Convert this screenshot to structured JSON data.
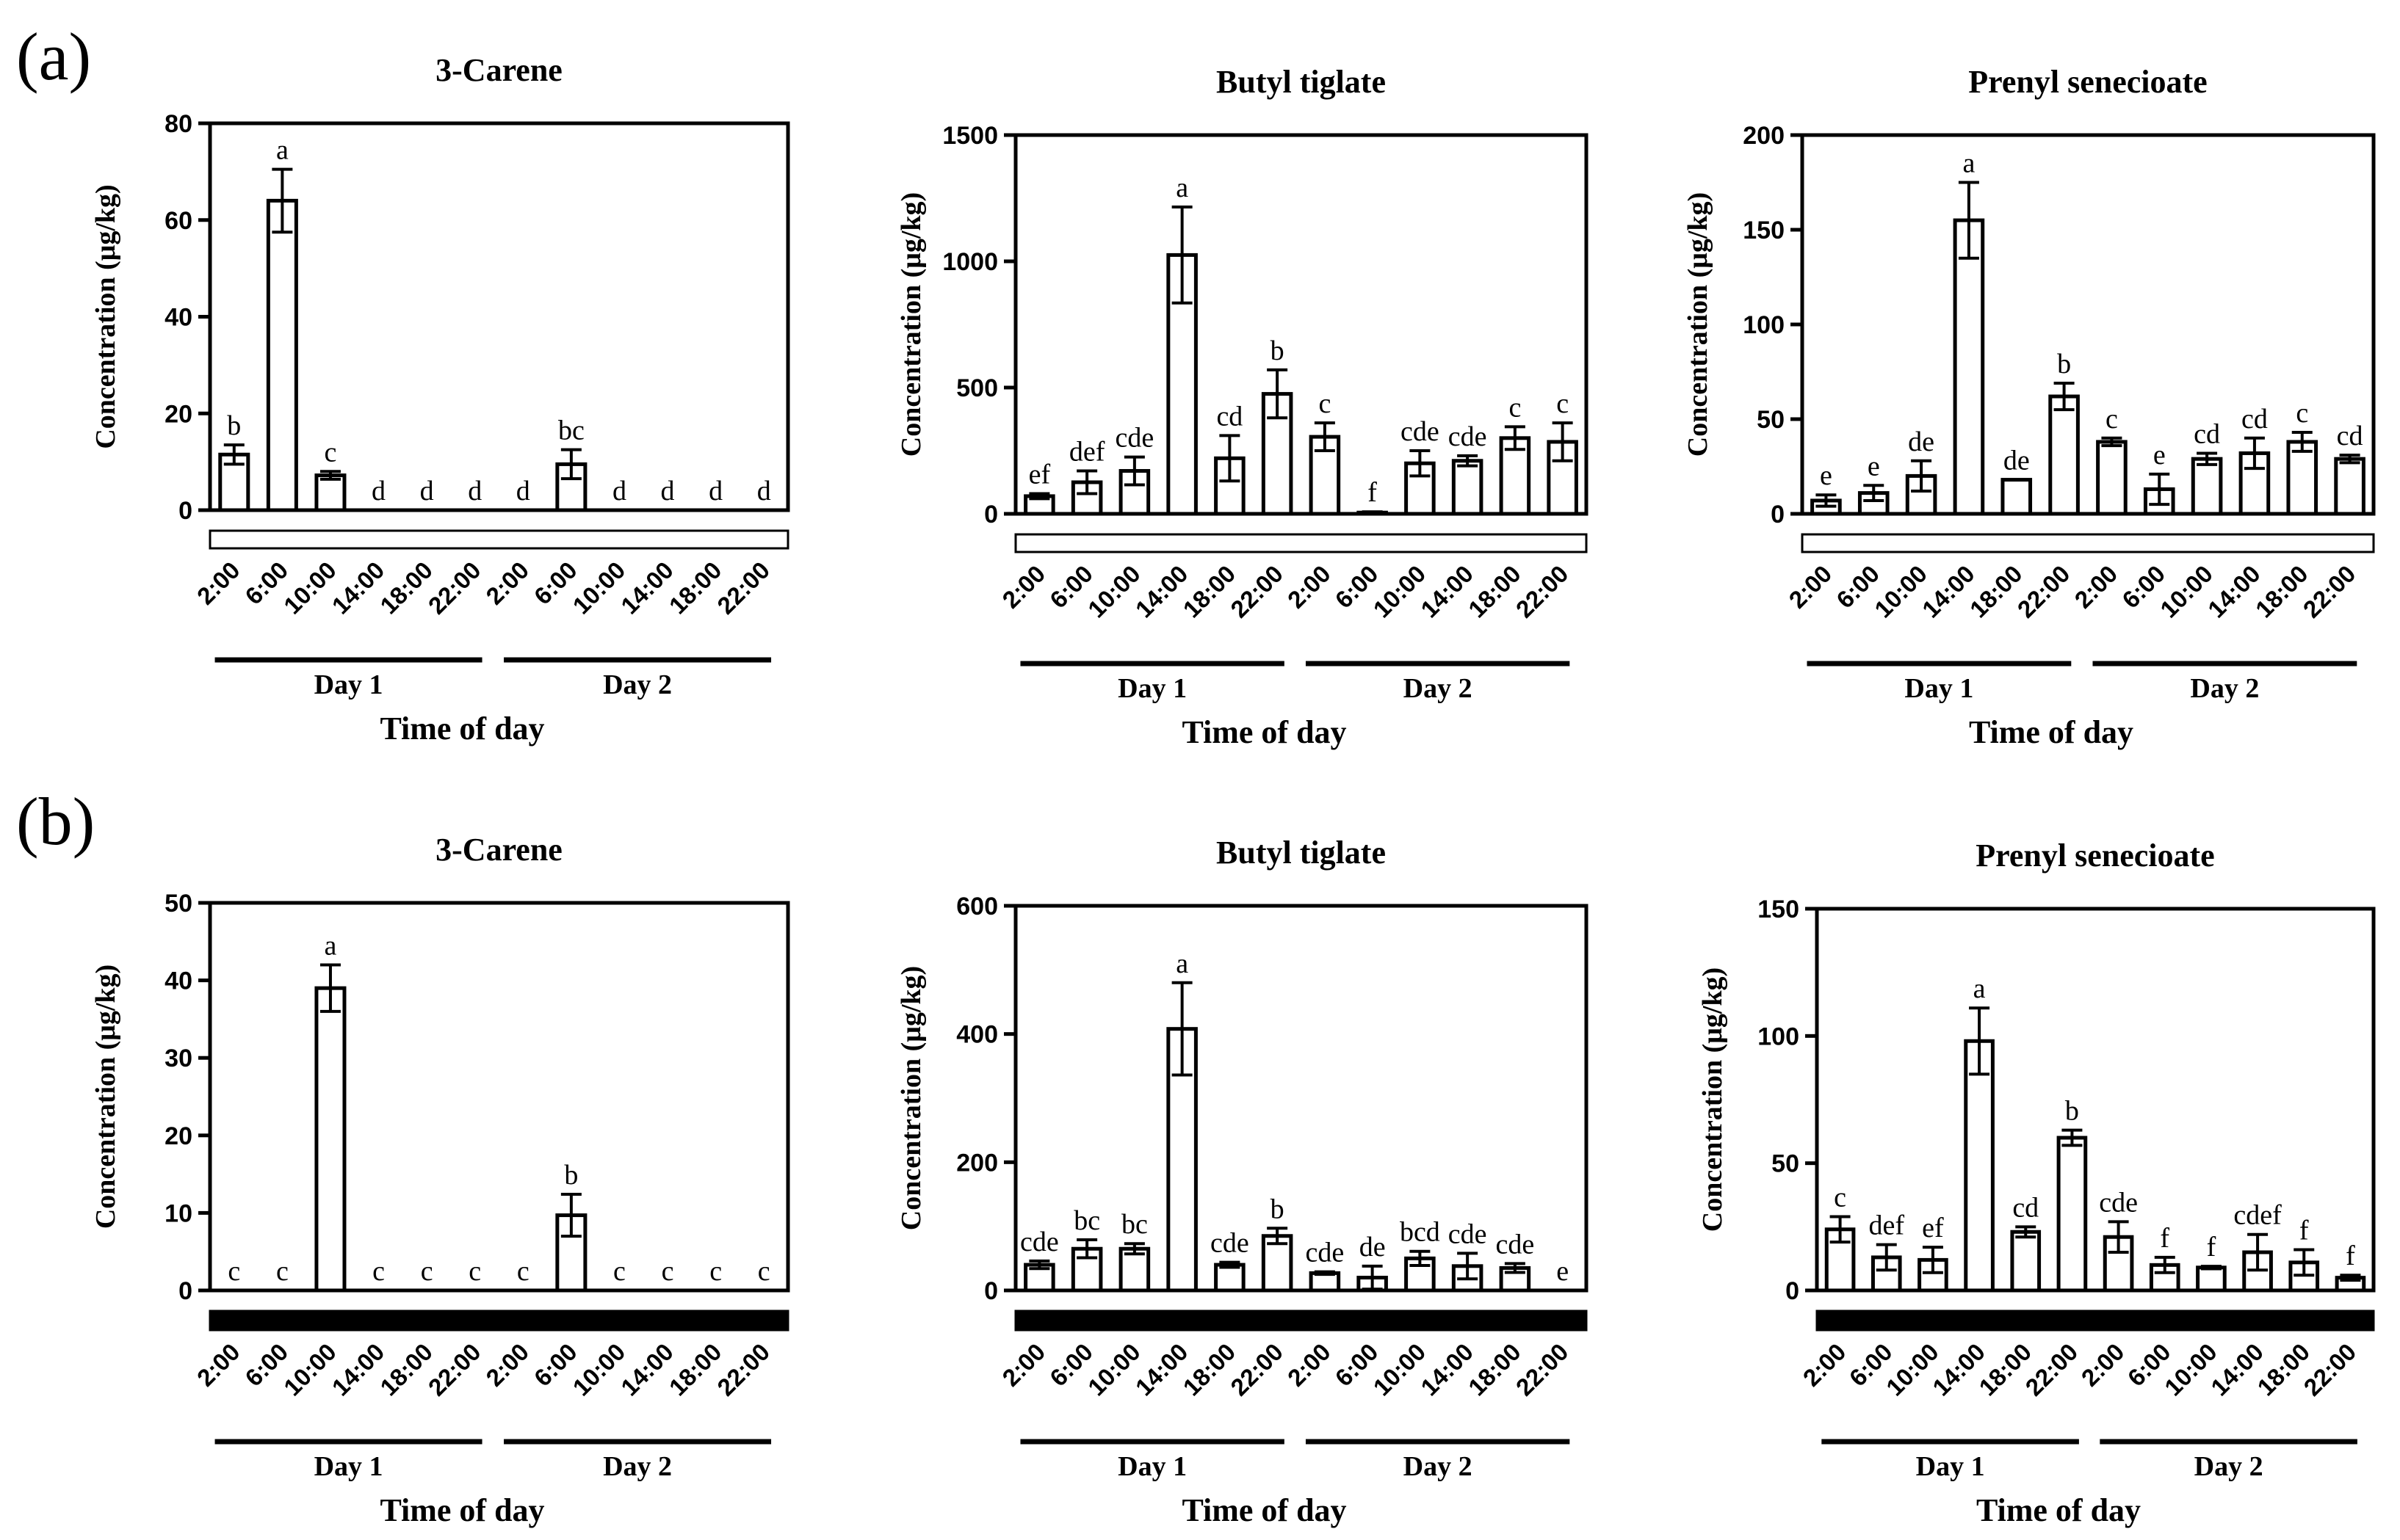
{
  "panels": [
    {
      "label": "(a)",
      "light_bar_color": "#ffffff"
    },
    {
      "label": "(b)",
      "light_bar_color": "#000000"
    }
  ],
  "chart_data": [
    {
      "type": "bar",
      "panel": "(a)",
      "title": "3-Carene",
      "ylabel": "Concentration (μg/kg)",
      "xlabel": "Time of day",
      "categories": [
        "2:00",
        "6:00",
        "10:00",
        "14:00",
        "18:00",
        "22:00",
        "2:00",
        "6:00",
        "10:00",
        "14:00",
        "18:00",
        "22:00"
      ],
      "day_labels": [
        "Day 1",
        "Day 2"
      ],
      "values": [
        11.5,
        64,
        7.2,
        0,
        0,
        0,
        0,
        9.5,
        0,
        0,
        0,
        0
      ],
      "errors": [
        2,
        6.5,
        0.8,
        0,
        0,
        0,
        0,
        3,
        0,
        0,
        0,
        0
      ],
      "significance": [
        "b",
        "a",
        "c",
        "d",
        "d",
        "d",
        "d",
        "bc",
        "d",
        "d",
        "d",
        "d"
      ],
      "ylim": [
        0,
        80
      ],
      "yticks": [
        0,
        20,
        40,
        60,
        80
      ]
    },
    {
      "type": "bar",
      "panel": "(a)",
      "title": "Butyl tiglate",
      "ylabel": "Concentration (μg/kg)",
      "xlabel": "Time of day",
      "categories": [
        "2:00",
        "6:00",
        "10:00",
        "14:00",
        "18:00",
        "22:00",
        "2:00",
        "6:00",
        "10:00",
        "14:00",
        "18:00",
        "22:00"
      ],
      "day_labels": [
        "Day 1",
        "Day 2"
      ],
      "values": [
        70,
        125,
        170,
        1025,
        220,
        475,
        305,
        5,
        200,
        210,
        300,
        285
      ],
      "errors": [
        10,
        45,
        55,
        190,
        90,
        95,
        55,
        3,
        50,
        20,
        45,
        75
      ],
      "significance": [
        "ef",
        "def",
        "cde",
        "a",
        "cd",
        "b",
        "c",
        "f",
        "cde",
        "cde",
        "c",
        "c"
      ],
      "ylim": [
        0,
        1500
      ],
      "yticks": [
        0,
        500,
        1000,
        1500
      ]
    },
    {
      "type": "bar",
      "panel": "(a)",
      "title": "Prenyl senecioate",
      "ylabel": "Concentration (μg/kg)",
      "xlabel": "Time of day",
      "categories": [
        "2:00",
        "6:00",
        "10:00",
        "14:00",
        "18:00",
        "22:00",
        "2:00",
        "6:00",
        "10:00",
        "14:00",
        "18:00",
        "22:00"
      ],
      "day_labels": [
        "Day 1",
        "Day 2"
      ],
      "values": [
        7,
        11,
        20,
        155,
        18,
        62,
        38,
        13,
        29,
        32,
        38,
        29
      ],
      "errors": [
        3,
        4,
        8,
        20,
        0,
        7,
        2,
        8,
        3,
        8,
        5,
        2
      ],
      "significance": [
        "e",
        "e",
        "de",
        "a",
        "de",
        "b",
        "c",
        "e",
        "cd",
        "cd",
        "c",
        "cd"
      ],
      "ylim": [
        0,
        200
      ],
      "yticks": [
        0,
        50,
        100,
        150,
        200
      ]
    },
    {
      "type": "bar",
      "panel": "(b)",
      "title": "3-Carene",
      "ylabel": "Concentration (μg/kg)",
      "xlabel": "Time of day",
      "categories": [
        "2:00",
        "6:00",
        "10:00",
        "14:00",
        "18:00",
        "22:00",
        "2:00",
        "6:00",
        "10:00",
        "14:00",
        "18:00",
        "22:00"
      ],
      "day_labels": [
        "Day 1",
        "Day 2"
      ],
      "values": [
        0,
        0,
        39,
        0,
        0,
        0,
        0,
        9.7,
        0,
        0,
        0,
        0
      ],
      "errors": [
        0,
        0,
        3,
        0,
        0,
        0,
        0,
        2.7,
        0,
        0,
        0,
        0
      ],
      "significance": [
        "c",
        "c",
        "a",
        "c",
        "c",
        "c",
        "c",
        "b",
        "c",
        "c",
        "c",
        "c"
      ],
      "ylim": [
        0,
        50
      ],
      "yticks": [
        0,
        10,
        20,
        30,
        40,
        50
      ]
    },
    {
      "type": "bar",
      "panel": "(b)",
      "title": "Butyl tiglate",
      "ylabel": "Concentration (μg/kg)",
      "xlabel": "Time of day",
      "categories": [
        "2:00",
        "6:00",
        "10:00",
        "14:00",
        "18:00",
        "22:00",
        "2:00",
        "6:00",
        "10:00",
        "14:00",
        "18:00",
        "22:00"
      ],
      "day_labels": [
        "Day 1",
        "Day 2"
      ],
      "values": [
        40,
        65,
        65,
        408,
        40,
        85,
        27,
        20,
        50,
        38,
        35,
        0
      ],
      "errors": [
        6,
        14,
        8,
        72,
        4,
        12,
        2,
        18,
        11,
        20,
        7,
        0
      ],
      "significance": [
        "cde",
        "bc",
        "bc",
        "a",
        "cde",
        "b",
        "cde",
        "de",
        "bcd",
        "cde",
        "cde",
        "e"
      ],
      "ylim": [
        0,
        600
      ],
      "yticks": [
        0,
        200,
        400,
        600
      ]
    },
    {
      "type": "bar",
      "panel": "(b)",
      "title": "Prenyl senecioate",
      "ylabel": "Concentration (μg/kg)",
      "xlabel": "Time of day",
      "categories": [
        "2:00",
        "6:00",
        "10:00",
        "14:00",
        "18:00",
        "22:00",
        "2:00",
        "6:00",
        "10:00",
        "14:00",
        "18:00",
        "22:00"
      ],
      "day_labels": [
        "Day 1",
        "Day 2"
      ],
      "values": [
        24,
        13,
        12,
        98,
        23,
        60,
        21,
        10,
        9,
        15,
        11,
        5
      ],
      "errors": [
        5,
        5,
        5,
        13,
        2,
        3,
        6,
        3,
        0.5,
        7,
        5,
        1
      ],
      "significance": [
        "c",
        "def",
        "ef",
        "a",
        "cd",
        "b",
        "cde",
        "f",
        "f",
        "cdef",
        "f",
        "f"
      ],
      "ylim": [
        0,
        150
      ],
      "yticks": [
        0,
        50,
        100,
        150
      ]
    }
  ]
}
